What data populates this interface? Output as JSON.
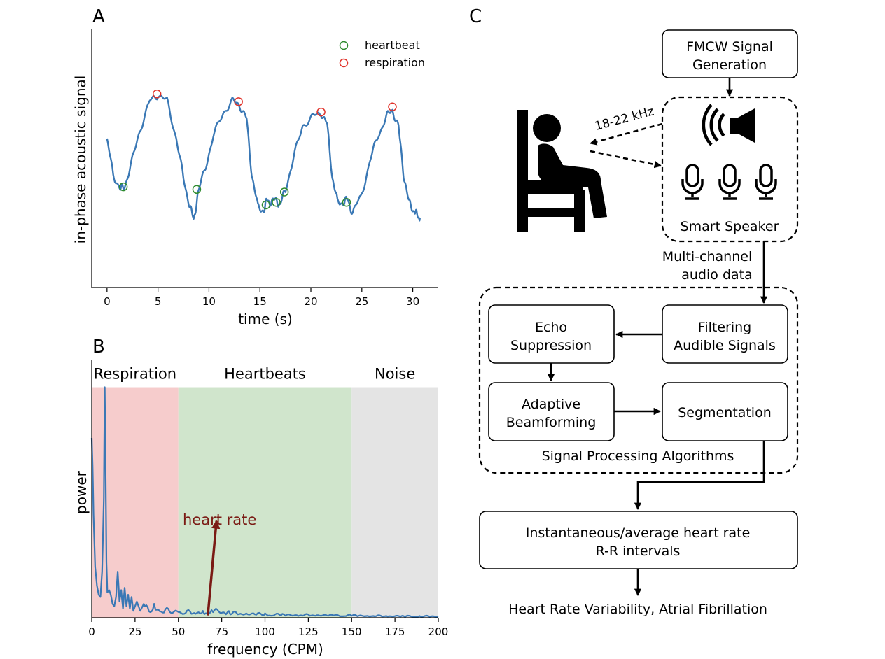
{
  "panels": {
    "a": "A",
    "b": "B",
    "c": "C"
  },
  "chart_data": [
    {
      "type": "line",
      "xlabel": "time (s)",
      "ylabel": "in-phase acoustic signal",
      "xlim": [
        -1.5,
        32.5
      ],
      "ylim": [
        0,
        10
      ],
      "xticks": [
        0,
        5,
        10,
        15,
        20,
        25,
        30
      ],
      "legend_position": "top-right",
      "legend": [
        {
          "label": "heartbeat",
          "color": "#2e8b2e"
        },
        {
          "label": "respiration",
          "color": "#e0322a"
        }
      ],
      "line_color": "#3a78b5",
      "series": [
        {
          "x": [
            0,
            0.6,
            1.3,
            1.7,
            2.4,
            3.2,
            4.2,
            5.0,
            5.9,
            6.8,
            7.5,
            8.1,
            8.5,
            8.9,
            9.6,
            10.4,
            11.4,
            12.3,
            13.0,
            13.7,
            14.2,
            14.8,
            15.4,
            15.7,
            16.1,
            16.6,
            17.0,
            17.5,
            18.3,
            19.2,
            20.2,
            21.0,
            21.6,
            22.1,
            22.6,
            23.2,
            23.6,
            24.1,
            24.9,
            25.8,
            26.6,
            27.4,
            28.0,
            28.6,
            29.1,
            29.6,
            30.1,
            30.4,
            30.7
          ],
          "y": [
            5.7,
            4.4,
            3.8,
            3.9,
            4.8,
            6.1,
            7.2,
            7.5,
            7.2,
            5.8,
            4.2,
            3.2,
            2.6,
            3.6,
            4.6,
            5.8,
            6.8,
            7.2,
            7.1,
            6.5,
            4.4,
            3.1,
            3.0,
            3.4,
            3.3,
            3.4,
            3.2,
            3.8,
            5.0,
            6.3,
            6.6,
            6.8,
            6.3,
            4.3,
            3.3,
            3.3,
            3.4,
            2.9,
            3.5,
            4.9,
            5.9,
            6.6,
            6.9,
            6.2,
            4.4,
            3.3,
            3.0,
            2.8,
            2.7
          ]
        }
      ],
      "heartbeat_markers": [
        {
          "x": 1.6,
          "y": 3.9
        },
        {
          "x": 8.8,
          "y": 3.8
        },
        {
          "x": 15.6,
          "y": 3.2
        },
        {
          "x": 16.6,
          "y": 3.3
        },
        {
          "x": 17.4,
          "y": 3.7
        },
        {
          "x": 23.5,
          "y": 3.3
        }
      ],
      "respiration_markers": [
        {
          "x": 4.9,
          "y": 7.5
        },
        {
          "x": 12.9,
          "y": 7.2
        },
        {
          "x": 21.0,
          "y": 6.8
        },
        {
          "x": 28.0,
          "y": 7.0
        }
      ]
    },
    {
      "type": "line",
      "xlabel": "frequency (CPM)",
      "ylabel": "power",
      "xlim": [
        0,
        200
      ],
      "ylim": [
        0,
        1.12
      ],
      "xticks": [
        0,
        25,
        50,
        75,
        100,
        125,
        150,
        175,
        200
      ],
      "bands": [
        {
          "label": "Respiration",
          "from": 0,
          "to": 50,
          "color": "#f6cccc"
        },
        {
          "label": "Heartbeats",
          "from": 50,
          "to": 150,
          "color": "#d0e5cc"
        },
        {
          "label": "Noise",
          "from": 150,
          "to": 200,
          "color": "#e4e4e4"
        }
      ],
      "annotation": {
        "text": "heart rate",
        "color": "#7a1a14",
        "arrow_from": [
          67,
          0.01
        ],
        "arrow_to": [
          72,
          0.42
        ]
      },
      "line_color": "#3a78b5",
      "series": [
        {
          "x": [
            0,
            0.5,
            1,
            2,
            3,
            4,
            5,
            6,
            7,
            7.5,
            8,
            8.5,
            9,
            10,
            11,
            12,
            13,
            14,
            15,
            16,
            17,
            18,
            19,
            20,
            21,
            22,
            23,
            24,
            26,
            28,
            30,
            33,
            36,
            40,
            45,
            50,
            55,
            60,
            65,
            70,
            80,
            90,
            100,
            110,
            120,
            130,
            140,
            150,
            160,
            170,
            180,
            190,
            200
          ],
          "y": [
            0.78,
            0.66,
            0.45,
            0.22,
            0.14,
            0.1,
            0.09,
            0.2,
            0.52,
            1.0,
            0.65,
            0.24,
            0.11,
            0.12,
            0.1,
            0.06,
            0.05,
            0.09,
            0.2,
            0.07,
            0.12,
            0.04,
            0.13,
            0.05,
            0.1,
            0.04,
            0.09,
            0.03,
            0.07,
            0.03,
            0.06,
            0.03,
            0.05,
            0.025,
            0.035,
            0.02,
            0.025,
            0.02,
            0.025,
            0.035,
            0.02,
            0.018,
            0.015,
            0.013,
            0.012,
            0.012,
            0.01,
            0.01,
            0.008,
            0.008,
            0.007,
            0.007,
            0.006
          ]
        }
      ]
    }
  ],
  "diagram": {
    "fmcw": [
      "FMCW Signal",
      "Generation"
    ],
    "freq": "18-22 kHz",
    "speaker": "Smart Speaker",
    "multichannel": [
      "Multi-channel",
      "audio data"
    ],
    "filtering": [
      "Filtering",
      "Audible Signals"
    ],
    "echo": [
      "Echo",
      "Suppression"
    ],
    "beamforming": [
      "Adaptive",
      "Beamforming"
    ],
    "segmentation": "Segmentation",
    "spa": "Signal Processing Algorithms",
    "output": [
      "Instantaneous/average heart rate",
      "R-R intervals"
    ],
    "final": "Heart Rate Variability, Atrial Fibrillation"
  },
  "icons": [
    "person-sitting-icon",
    "speaker-icon",
    "microphone-icon"
  ]
}
